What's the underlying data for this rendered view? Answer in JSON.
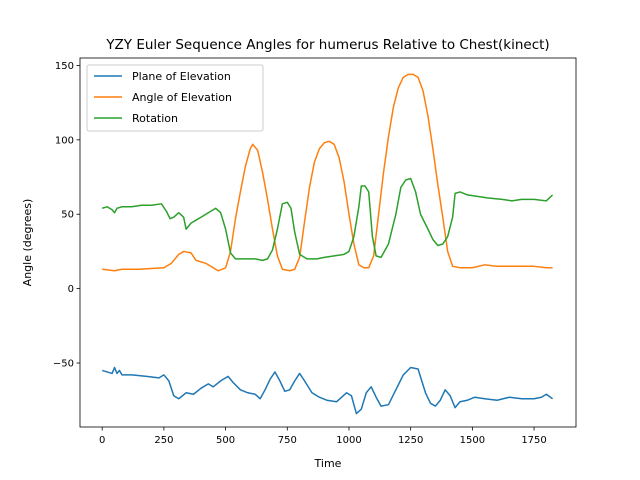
{
  "chart_data": {
    "type": "line",
    "title": "YZY Euler Sequence Angles for humerus Relative to Chest(kinect)",
    "xlabel": "Time",
    "ylabel": "Angle (degrees)",
    "xlim": [
      -90,
      1920
    ],
    "ylim": [
      -93,
      155
    ],
    "xticks": [
      0,
      250,
      500,
      750,
      1000,
      1250,
      1500,
      1750
    ],
    "yticks": [
      -50,
      0,
      50,
      100,
      150
    ],
    "grid": false,
    "legend_position": "top-left",
    "series": [
      {
        "name": "Plane of Elevation",
        "color": "#1f77b4",
        "points": [
          [
            0,
            -55
          ],
          [
            20,
            -56
          ],
          [
            40,
            -57
          ],
          [
            50,
            -53
          ],
          [
            60,
            -57
          ],
          [
            70,
            -55
          ],
          [
            80,
            -58
          ],
          [
            120,
            -58
          ],
          [
            180,
            -59
          ],
          [
            230,
            -60
          ],
          [
            250,
            -58
          ],
          [
            270,
            -62
          ],
          [
            290,
            -72
          ],
          [
            310,
            -74
          ],
          [
            340,
            -70
          ],
          [
            370,
            -71
          ],
          [
            400,
            -67
          ],
          [
            430,
            -64
          ],
          [
            450,
            -66
          ],
          [
            480,
            -62
          ],
          [
            510,
            -59
          ],
          [
            530,
            -63
          ],
          [
            560,
            -68
          ],
          [
            590,
            -70
          ],
          [
            620,
            -71
          ],
          [
            640,
            -74
          ],
          [
            660,
            -68
          ],
          [
            680,
            -61
          ],
          [
            700,
            -56
          ],
          [
            720,
            -62
          ],
          [
            740,
            -69
          ],
          [
            760,
            -68
          ],
          [
            780,
            -62
          ],
          [
            800,
            -57
          ],
          [
            820,
            -62
          ],
          [
            850,
            -70
          ],
          [
            880,
            -73
          ],
          [
            910,
            -75
          ],
          [
            950,
            -76
          ],
          [
            990,
            -70
          ],
          [
            1010,
            -72
          ],
          [
            1030,
            -84
          ],
          [
            1050,
            -81
          ],
          [
            1070,
            -70
          ],
          [
            1090,
            -66
          ],
          [
            1110,
            -73
          ],
          [
            1130,
            -79
          ],
          [
            1160,
            -78
          ],
          [
            1190,
            -68
          ],
          [
            1220,
            -58
          ],
          [
            1250,
            -53
          ],
          [
            1280,
            -54
          ],
          [
            1310,
            -70
          ],
          [
            1330,
            -77
          ],
          [
            1350,
            -79
          ],
          [
            1370,
            -75
          ],
          [
            1390,
            -68
          ],
          [
            1410,
            -72
          ],
          [
            1430,
            -80
          ],
          [
            1450,
            -76
          ],
          [
            1480,
            -75
          ],
          [
            1510,
            -73
          ],
          [
            1550,
            -74
          ],
          [
            1600,
            -75
          ],
          [
            1650,
            -73
          ],
          [
            1700,
            -74
          ],
          [
            1750,
            -74
          ],
          [
            1780,
            -73
          ],
          [
            1800,
            -71
          ],
          [
            1825,
            -74
          ]
        ]
      },
      {
        "name": "Angle of Elevation",
        "color": "#ff7f0e",
        "points": [
          [
            0,
            13
          ],
          [
            50,
            12
          ],
          [
            80,
            13
          ],
          [
            150,
            13
          ],
          [
            200,
            13.5
          ],
          [
            250,
            14
          ],
          [
            280,
            17
          ],
          [
            310,
            23
          ],
          [
            330,
            25
          ],
          [
            360,
            24
          ],
          [
            380,
            19
          ],
          [
            420,
            17
          ],
          [
            450,
            14
          ],
          [
            470,
            12
          ],
          [
            500,
            14
          ],
          [
            520,
            25
          ],
          [
            540,
            47
          ],
          [
            560,
            65
          ],
          [
            580,
            82
          ],
          [
            600,
            94
          ],
          [
            610,
            97
          ],
          [
            630,
            93
          ],
          [
            650,
            78
          ],
          [
            670,
            60
          ],
          [
            690,
            40
          ],
          [
            710,
            22
          ],
          [
            730,
            13
          ],
          [
            760,
            12
          ],
          [
            780,
            13
          ],
          [
            800,
            21
          ],
          [
            820,
            45
          ],
          [
            840,
            68
          ],
          [
            860,
            85
          ],
          [
            880,
            94
          ],
          [
            900,
            98
          ],
          [
            920,
            99
          ],
          [
            940,
            97
          ],
          [
            960,
            88
          ],
          [
            980,
            72
          ],
          [
            1000,
            50
          ],
          [
            1020,
            30
          ],
          [
            1040,
            16
          ],
          [
            1060,
            14
          ],
          [
            1080,
            14
          ],
          [
            1100,
            22
          ],
          [
            1120,
            50
          ],
          [
            1140,
            78
          ],
          [
            1160,
            102
          ],
          [
            1180,
            122
          ],
          [
            1200,
            135
          ],
          [
            1220,
            142
          ],
          [
            1240,
            144
          ],
          [
            1260,
            144
          ],
          [
            1280,
            142
          ],
          [
            1300,
            133
          ],
          [
            1320,
            116
          ],
          [
            1340,
            94
          ],
          [
            1360,
            70
          ],
          [
            1380,
            48
          ],
          [
            1400,
            25
          ],
          [
            1420,
            15
          ],
          [
            1450,
            14
          ],
          [
            1500,
            14
          ],
          [
            1550,
            16
          ],
          [
            1600,
            15
          ],
          [
            1650,
            15
          ],
          [
            1700,
            15
          ],
          [
            1750,
            15
          ],
          [
            1800,
            14
          ],
          [
            1825,
            14
          ]
        ]
      },
      {
        "name": "Rotation",
        "color": "#2ca02c",
        "points": [
          [
            0,
            54
          ],
          [
            20,
            55
          ],
          [
            40,
            53
          ],
          [
            50,
            51
          ],
          [
            60,
            54
          ],
          [
            80,
            55
          ],
          [
            120,
            55
          ],
          [
            160,
            56
          ],
          [
            200,
            56
          ],
          [
            240,
            57
          ],
          [
            260,
            52
          ],
          [
            275,
            47
          ],
          [
            290,
            48
          ],
          [
            310,
            51
          ],
          [
            330,
            48
          ],
          [
            340,
            40
          ],
          [
            360,
            44
          ],
          [
            380,
            46
          ],
          [
            400,
            48
          ],
          [
            420,
            50
          ],
          [
            440,
            52
          ],
          [
            460,
            54
          ],
          [
            480,
            51
          ],
          [
            500,
            40
          ],
          [
            520,
            24
          ],
          [
            540,
            20
          ],
          [
            580,
            20
          ],
          [
            620,
            20
          ],
          [
            650,
            19
          ],
          [
            670,
            20
          ],
          [
            690,
            26
          ],
          [
            710,
            40
          ],
          [
            730,
            57
          ],
          [
            750,
            58
          ],
          [
            765,
            54
          ],
          [
            780,
            38
          ],
          [
            800,
            23
          ],
          [
            830,
            20
          ],
          [
            870,
            20
          ],
          [
            900,
            21
          ],
          [
            940,
            22
          ],
          [
            980,
            23
          ],
          [
            1000,
            25
          ],
          [
            1020,
            35
          ],
          [
            1040,
            55
          ],
          [
            1050,
            69
          ],
          [
            1065,
            69
          ],
          [
            1080,
            65
          ],
          [
            1095,
            35
          ],
          [
            1110,
            22
          ],
          [
            1130,
            21
          ],
          [
            1160,
            30
          ],
          [
            1190,
            50
          ],
          [
            1210,
            68
          ],
          [
            1230,
            73
          ],
          [
            1250,
            74
          ],
          [
            1270,
            65
          ],
          [
            1290,
            50
          ],
          [
            1320,
            40
          ],
          [
            1340,
            33
          ],
          [
            1360,
            29
          ],
          [
            1380,
            30
          ],
          [
            1400,
            35
          ],
          [
            1420,
            48
          ],
          [
            1430,
            64
          ],
          [
            1450,
            65
          ],
          [
            1480,
            63
          ],
          [
            1520,
            62
          ],
          [
            1560,
            61
          ],
          [
            1620,
            60
          ],
          [
            1660,
            59
          ],
          [
            1700,
            60
          ],
          [
            1750,
            60
          ],
          [
            1800,
            59
          ],
          [
            1825,
            63
          ]
        ]
      }
    ]
  }
}
